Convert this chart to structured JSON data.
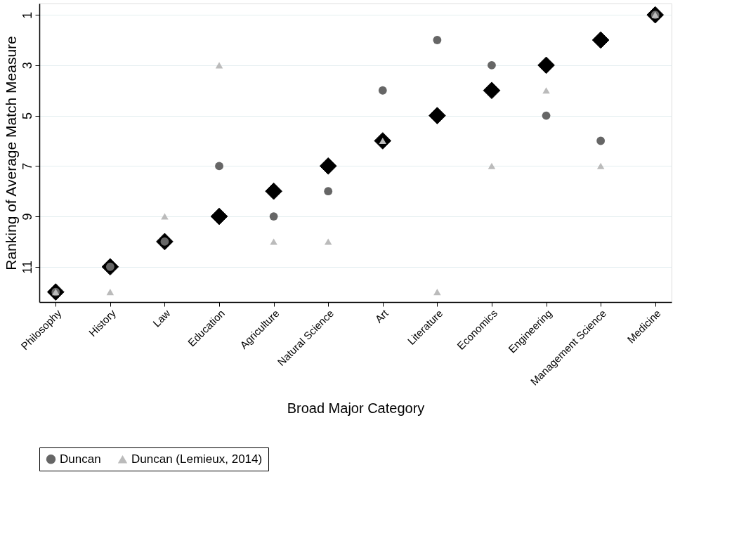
{
  "chart_data": {
    "type": "scatter",
    "xlabel": "Broad Major Category",
    "ylabel": "Ranking of Average Match Measure",
    "categories": [
      "Philosophy",
      "History",
      "Law",
      "Education",
      "Agriculture",
      "Natural Science",
      "Art",
      "Literature",
      "Economics",
      "Engineering",
      "Management Science",
      "Medicine"
    ],
    "series": [
      {
        "color": "#000000",
        "marker": "diamond",
        "values": [
          12,
          11,
          10,
          9,
          8,
          7,
          6,
          5,
          4,
          3,
          2,
          1
        ]
      },
      {
        "name": "Duncan",
        "color": "#666666",
        "marker": "circle",
        "values": [
          12,
          11,
          10,
          7,
          9,
          8,
          4,
          2,
          3,
          5,
          6,
          1
        ]
      },
      {
        "name": "Duncan (Lemieux, 2014)",
        "color": "#bbbbbb",
        "marker": "triangle",
        "values": [
          12,
          12,
          9,
          3,
          10,
          10,
          6,
          12,
          7,
          4,
          7,
          1
        ]
      }
    ],
    "ylim": [
      12.4,
      0.55
    ],
    "yticks": [
      1,
      3,
      5,
      7,
      9,
      11
    ],
    "grid": "y",
    "legend": "bottom"
  }
}
